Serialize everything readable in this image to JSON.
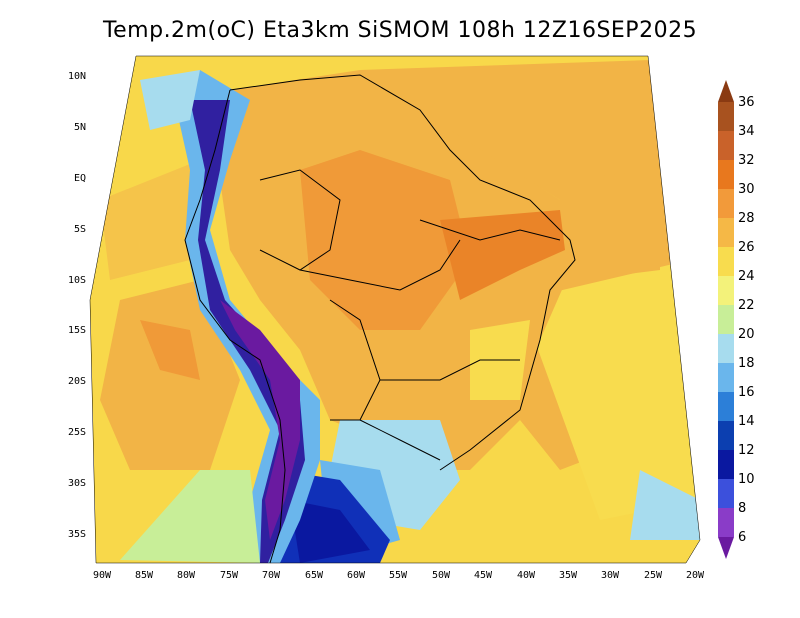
{
  "title": "Temp.2m(oC) Eta3km SiSMOM 108h 12Z16SEP2025",
  "lat_labels": [
    "10N",
    "5N",
    "EQ",
    "5S",
    "10S",
    "15S",
    "20S",
    "25S",
    "30S",
    "35S"
  ],
  "lon_labels": [
    "90W",
    "85W",
    "80W",
    "75W",
    "70W",
    "65W",
    "60W",
    "55W",
    "50W",
    "45W",
    "40W",
    "35W",
    "30W",
    "25W",
    "20W"
  ],
  "colorbar": {
    "labels": [
      "36",
      "34",
      "32",
      "30",
      "28",
      "26",
      "24",
      "22",
      "20",
      "18",
      "16",
      "14",
      "12",
      "10",
      "8",
      "6"
    ],
    "colors": [
      "#8a3a12",
      "#a8521f",
      "#c9622a",
      "#e8781e",
      "#f29a3a",
      "#f5b846",
      "#f8dc4e",
      "#f3f27a",
      "#c8ee98",
      "#a7dcee",
      "#6ab6ec",
      "#2c7fd8",
      "#0c3fb0",
      "#0a18a0",
      "#3c50dc",
      "#8a3cc8",
      "#6a1aa0"
    ]
  },
  "palette": {
    "ocean_sw": "#f8d84a",
    "ocean_warm": "#f2b446",
    "ocean_hot": "#f09a38",
    "cool_edge": "#c8ee98",
    "cold_blue": "#6ab6ec",
    "andes_purple": "#6a1aa0",
    "andes_indigo": "#3020a0",
    "patagonia_blue": "#1030b8",
    "border": "#000000"
  }
}
